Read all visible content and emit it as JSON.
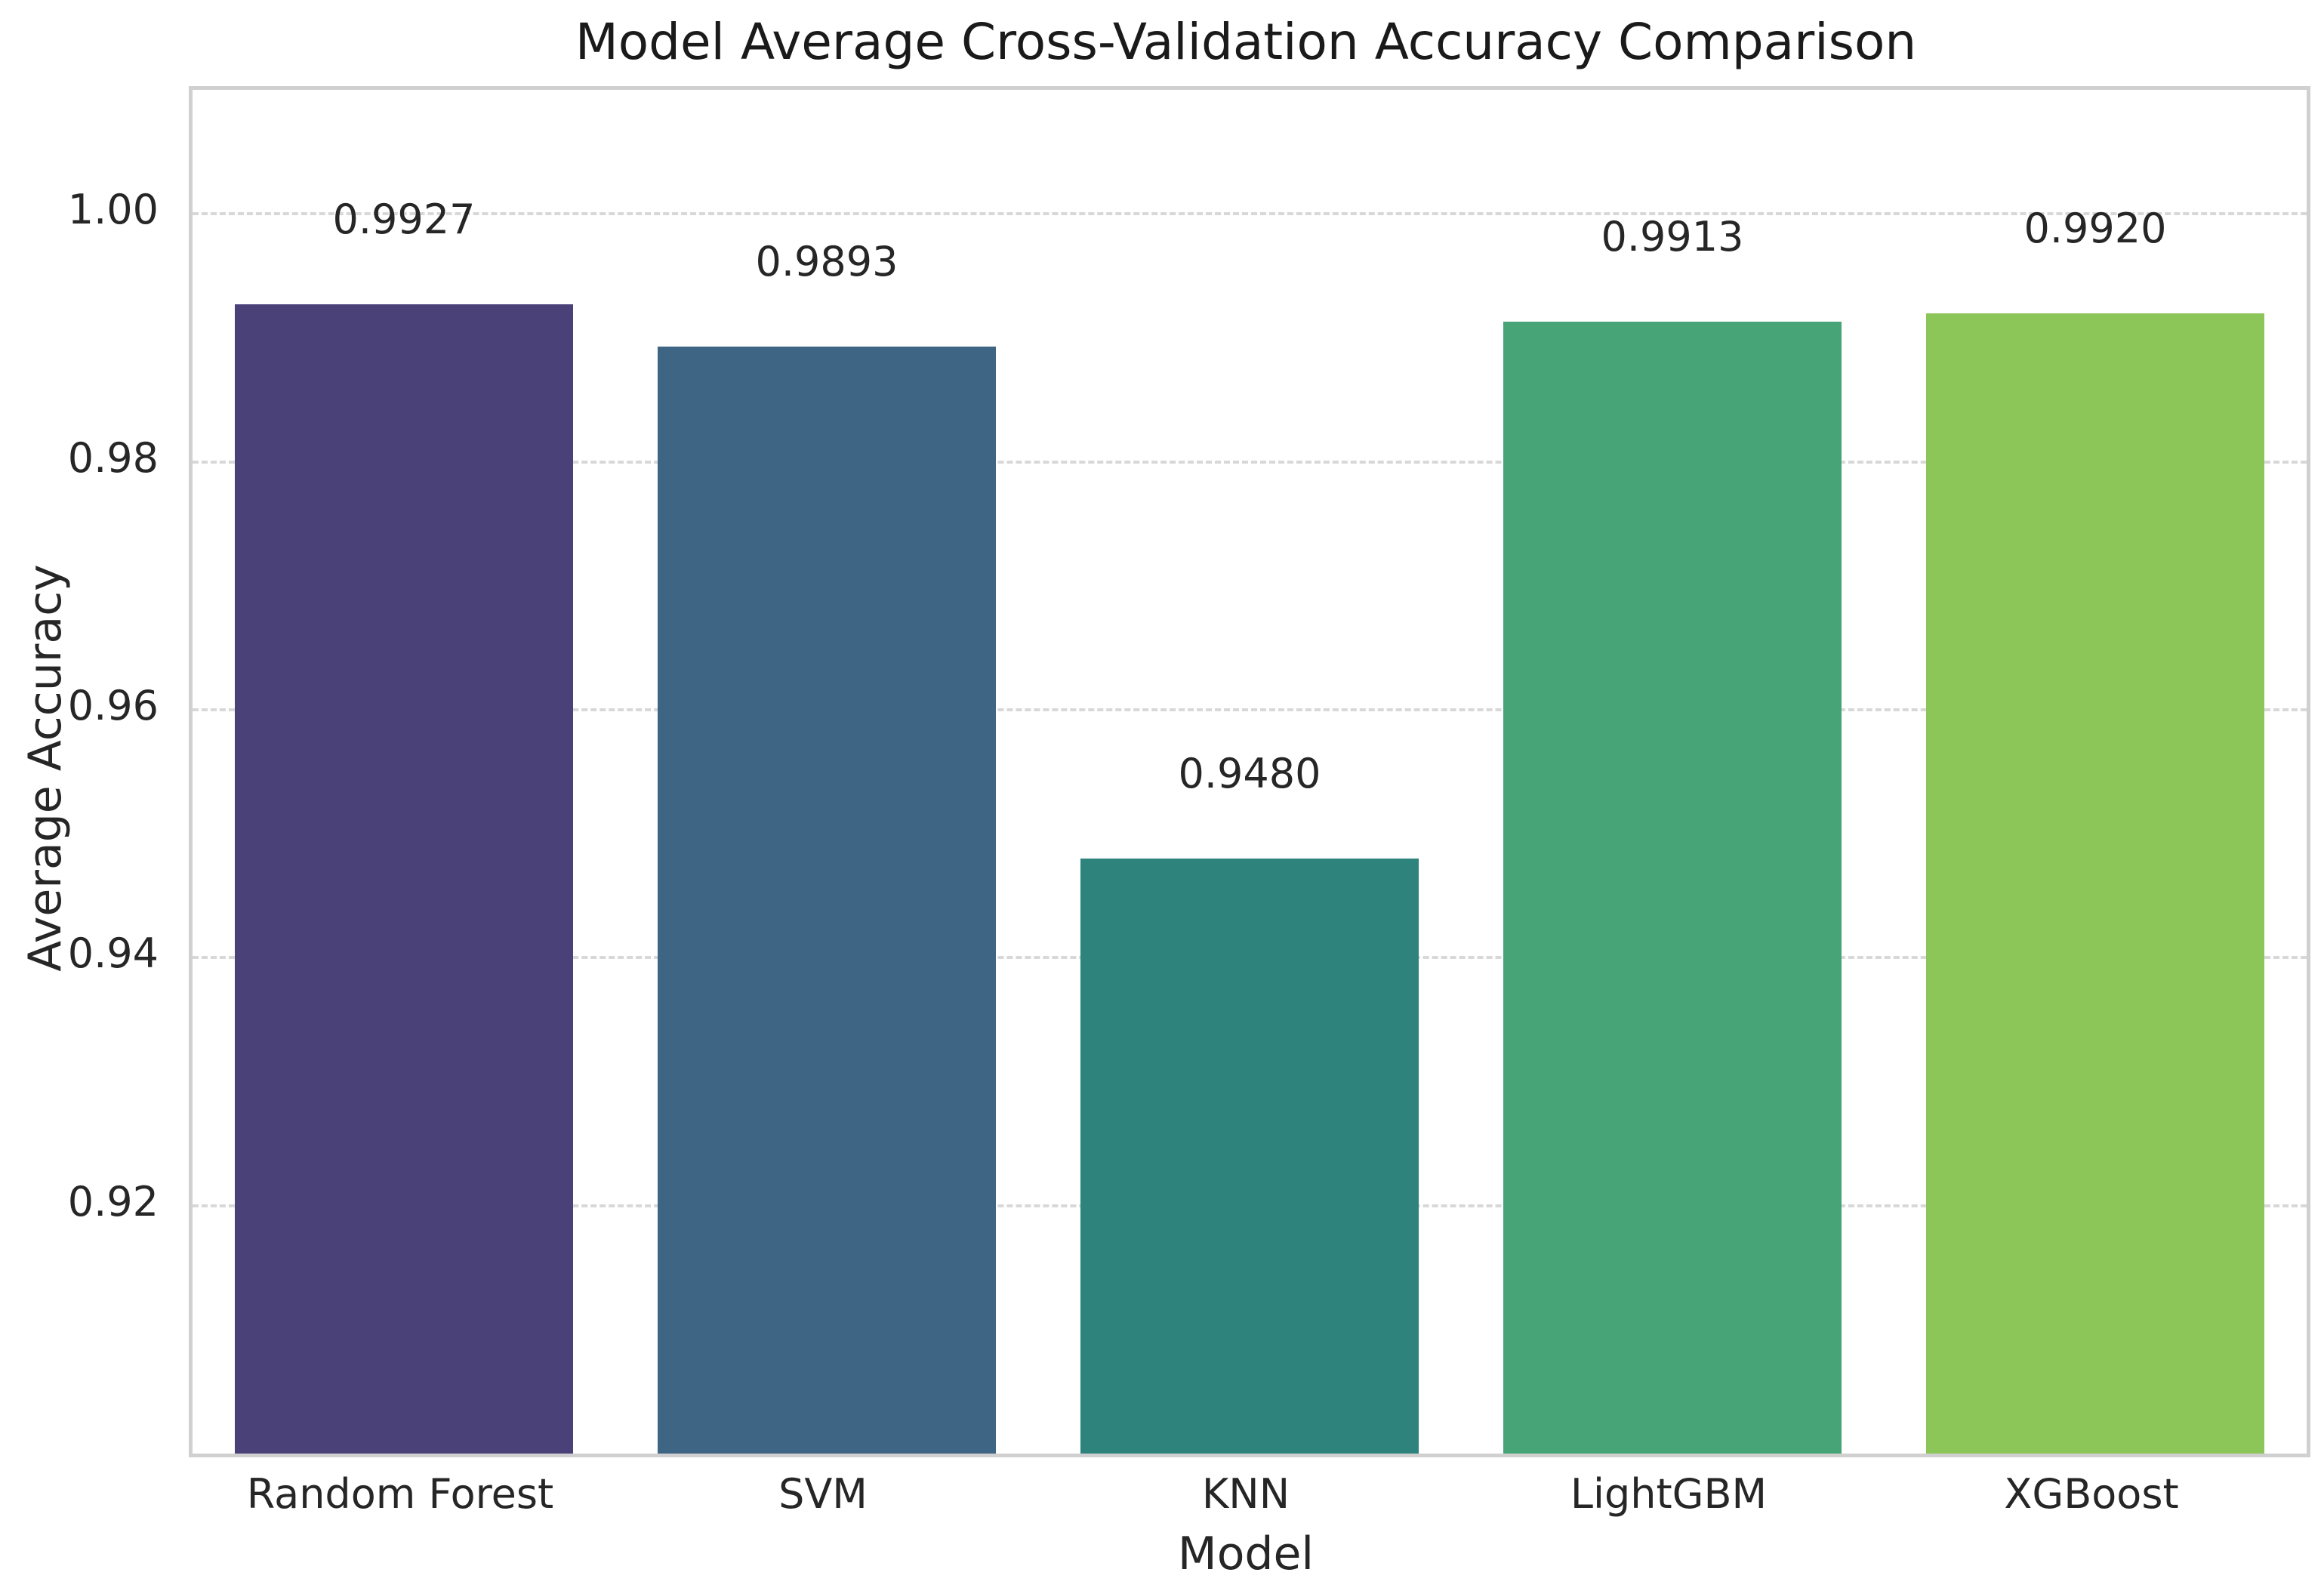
{
  "chart_data": {
    "type": "bar",
    "title": "Model Average Cross-Validation Accuracy Comparison",
    "xlabel": "Model",
    "ylabel": "Average Accuracy",
    "categories": [
      "Random Forest",
      "SVM",
      "KNN",
      "LightGBM",
      "XGBoost"
    ],
    "values": [
      0.9927,
      0.9893,
      0.948,
      0.9913,
      0.992
    ],
    "value_labels": [
      "0.9927",
      "0.9893",
      "0.9480",
      "0.9913",
      "0.9920"
    ],
    "bar_colors": [
      "#4a4179",
      "#3e6584",
      "#2e837d",
      "#46a477",
      "#8cc558"
    ],
    "ylim": [
      0.9,
      1.01
    ],
    "yticks": [
      1.0,
      0.98,
      0.96,
      0.94,
      0.92
    ],
    "ytick_labels": [
      "1.00",
      "0.98",
      "0.96",
      "0.94",
      "0.92"
    ],
    "grid": "horizontal-dashed",
    "grid_color": "#d8d8d8",
    "spine_color": "#d0d0d0",
    "text_color": "#262626",
    "background_color": "#ffffff",
    "legend_position": "none",
    "bar_width_fraction": 0.8
  }
}
